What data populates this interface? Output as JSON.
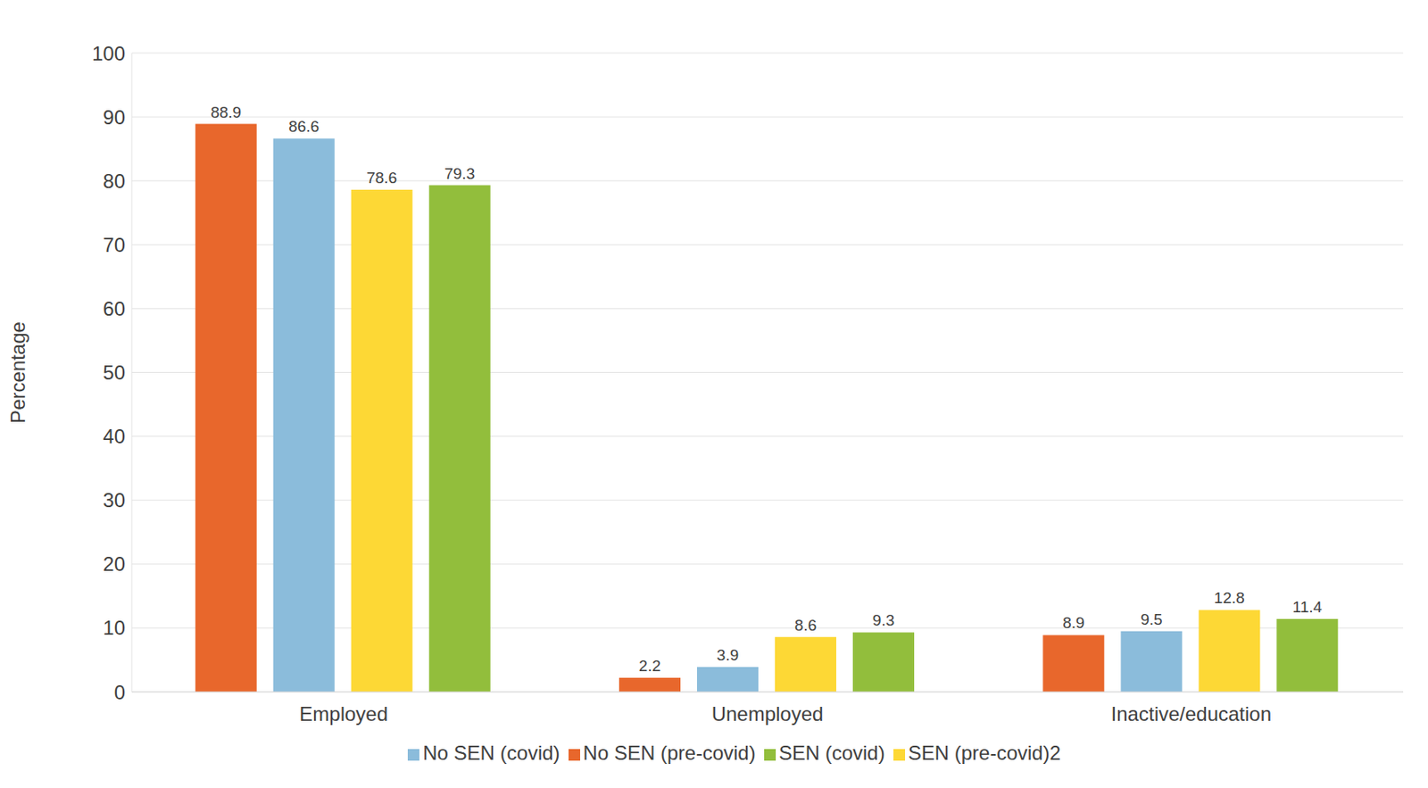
{
  "chart_data": {
    "type": "bar",
    "y_label": "Percentage",
    "categories": [
      "Employed",
      "Unemployed",
      "Inactive/education"
    ],
    "series": [
      {
        "name": "No SEN (pre-covid)",
        "color": "#e8672c",
        "values": [
          88.9,
          2.2,
          8.9
        ]
      },
      {
        "name": "No SEN (covid)",
        "color": "#8bbcdb",
        "values": [
          86.6,
          3.9,
          9.5
        ]
      },
      {
        "name": "SEN (pre-covid)2",
        "color": "#fdd835",
        "values": [
          78.6,
          8.6,
          12.8
        ]
      },
      {
        "name": "SEN (covid)",
        "color": "#92be3c",
        "values": [
          79.3,
          9.3,
          11.4
        ]
      }
    ],
    "ylim": [
      0,
      100
    ],
    "yticks": [
      0,
      10,
      20,
      30,
      40,
      50,
      60,
      70,
      80,
      90,
      100
    ],
    "grid": true,
    "legend": "bottom",
    "data_labels": true
  }
}
